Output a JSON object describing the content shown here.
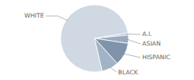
{
  "chart_data": {
    "type": "pie",
    "categories": [
      "WHITE",
      "A.I.",
      "ASIAN",
      "HISPANIC",
      "BLACK"
    ],
    "values": [
      76,
      1,
      4,
      11,
      8
    ],
    "colors": [
      "#cfd8e3",
      "#aebdcd",
      "#9aabbf",
      "#7f94ab",
      "#a3b3c6"
    ]
  }
}
